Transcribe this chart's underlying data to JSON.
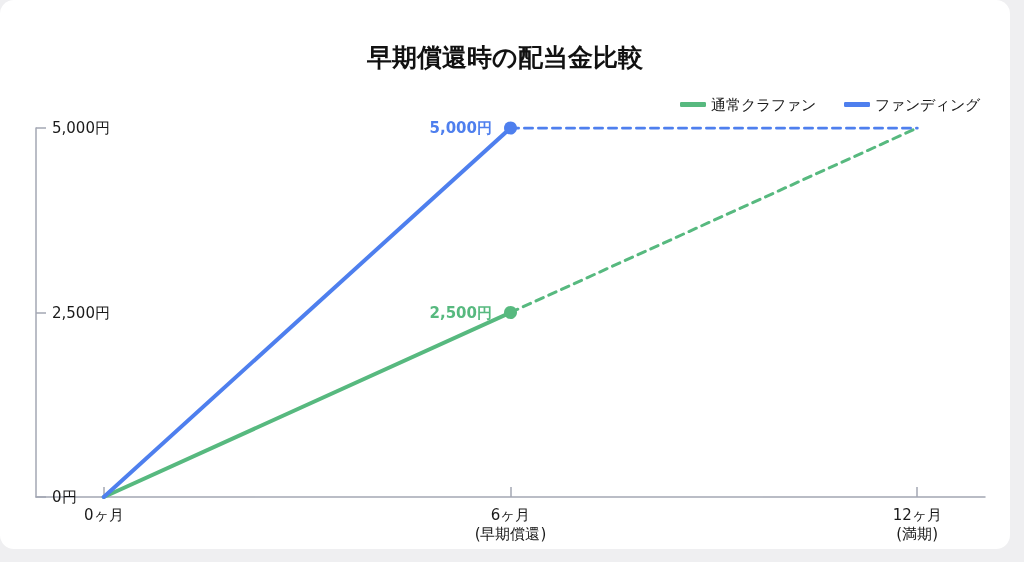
{
  "chart_data": {
    "type": "line",
    "title": "早期償還時の配当金比較",
    "x": [
      0,
      6,
      12
    ],
    "xlim": [
      -1,
      13
    ],
    "xticks": [
      {
        "value": 0,
        "label": "0ヶ月"
      },
      {
        "value": 6,
        "label": "6ヶ月\n(早期償還)"
      },
      {
        "value": 12,
        "label": "12ヶ月\n(満期)"
      }
    ],
    "ylim": [
      0,
      5000
    ],
    "yticks": [
      {
        "value": 0,
        "label": "0円"
      },
      {
        "value": 2500,
        "label": "2,500円"
      },
      {
        "value": 5000,
        "label": "5,000円"
      }
    ],
    "legend": "top right",
    "line_style": "solid",
    "marker": "none",
    "series": [
      {
        "name": "通常クラファン",
        "color": "#57b97f",
        "values": [
          0,
          2500,
          null
        ]
      },
      {
        "name": "ファンディング",
        "color": "#4e7fee",
        "values": [
          0,
          5000,
          null
        ]
      },
      {
        "color": "#57b97f",
        "values": [
          null,
          2500,
          5000
        ],
        "line_style": "dashed"
      },
      {
        "color": "#4e7fee",
        "values": [
          null,
          5000,
          5000
        ],
        "line_style": "dashed"
      },
      {
        "type": "scatter",
        "color": "#57b97f",
        "x": [
          6
        ],
        "values": [
          2500
        ],
        "marker": "circle",
        "value_labels": [
          "2,500円"
        ]
      },
      {
        "type": "scatter",
        "color": "#4e7fee",
        "x": [
          6
        ],
        "values": [
          5000
        ],
        "marker": "circle",
        "value_labels": [
          "5,000円"
        ]
      }
    ]
  }
}
